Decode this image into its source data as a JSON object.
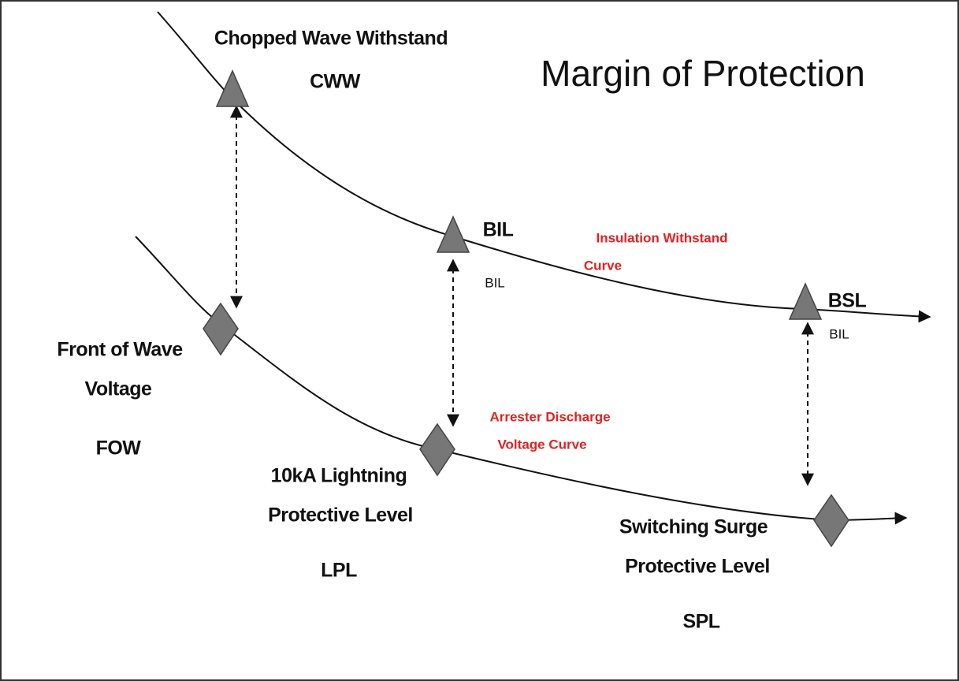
{
  "title": "Margin of Protection",
  "insulation": {
    "cww_name": "Chopped Wave Withstand",
    "cww": "CWW",
    "bil": "BIL",
    "bil_small": "BIL",
    "bsl": "BSL",
    "bsl_small": "BIL",
    "curve_line1": "Insulation Withstand",
    "curve_line2": "Curve"
  },
  "arrester": {
    "fow_line1": "Front of Wave",
    "fow_line2": "Voltage",
    "fow": "FOW",
    "curve_line1": "Arrester Discharge",
    "curve_line2": "Voltage Curve",
    "lpl_line1": "10kA Lightning",
    "lpl_line2": "Protective Level",
    "lpl": "LPL",
    "spl_line1": "Switching Surge",
    "spl_line2": "Protective Level",
    "spl": "SPL"
  }
}
